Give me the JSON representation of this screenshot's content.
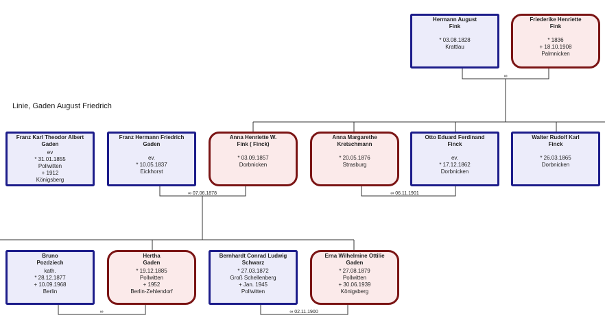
{
  "heading": "Linie, Gaden August Friedrich",
  "nodes": [
    {
      "name": [
        "Hermann August",
        "Fink"
      ],
      "details": [
        "* 03.08.1828",
        "Krattlau"
      ]
    },
    {
      "name": [
        "Friederike Henriette",
        "Fink"
      ],
      "details": [
        "* 1836",
        "+ 18.10.1908",
        "Palmnicken"
      ]
    },
    {
      "name": [
        "Franz Karl Theodor  Albert",
        "Gaden"
      ],
      "details": [
        "ev",
        "* 31.01.1855",
        "Pollwitten",
        "+ 1912",
        "Königsberg"
      ]
    },
    {
      "name": [
        "Franz Hermann Friedrich",
        "Gaden"
      ],
      "details": [
        "ev.",
        "* 10.05.1837",
        "Eickhorst"
      ]
    },
    {
      "name": [
        "Anna Henriette W.",
        "Fink ( Finck)"
      ],
      "details": [
        "* 03.09.1857",
        "Dorbnicken"
      ]
    },
    {
      "name": [
        "Anna Margarethe",
        "Kretschmann"
      ],
      "details": [
        "* 20.05.1876",
        "Strasburg"
      ]
    },
    {
      "name": [
        "Otto Eduard Ferdinand",
        "Finck"
      ],
      "details": [
        "ev.",
        "* 17.12.1862",
        "Dorbnicken"
      ]
    },
    {
      "name": [
        "Walter Rudolf Karl",
        "Finck"
      ],
      "details": [
        "* 26.03.1865",
        "Dorbnicken"
      ]
    },
    {
      "name": [
        "Bruno",
        "Pozdziech"
      ],
      "details": [
        "kath.",
        "* 28.12.1877",
        "+ 10.09.1968",
        "Berlin"
      ]
    },
    {
      "name": [
        "Hertha",
        "Gaden"
      ],
      "details": [
        "* 19.12.1885",
        "Pollwitten",
        "+ 1952",
        "Berlin-Zehlendorf"
      ]
    },
    {
      "name": [
        "Bernhardt Conrad Ludwig",
        "Schwarz"
      ],
      "details": [
        "* 27.03.1872",
        "Groß Schellenberg",
        "+ Jan. 1945",
        "Pollwitten"
      ]
    },
    {
      "name": [
        "Erna Wilhelmine Ottilie",
        "Gaden"
      ],
      "details": [
        "* 27.08.1879",
        "Pollwitten",
        "+ 30.06.1939",
        "Königsberg"
      ]
    }
  ],
  "marriages": [
    "∞",
    "∞ 07.06.1878",
    "∞ 06.11.1901",
    "∞",
    "∞ 02.11.1900"
  ]
}
